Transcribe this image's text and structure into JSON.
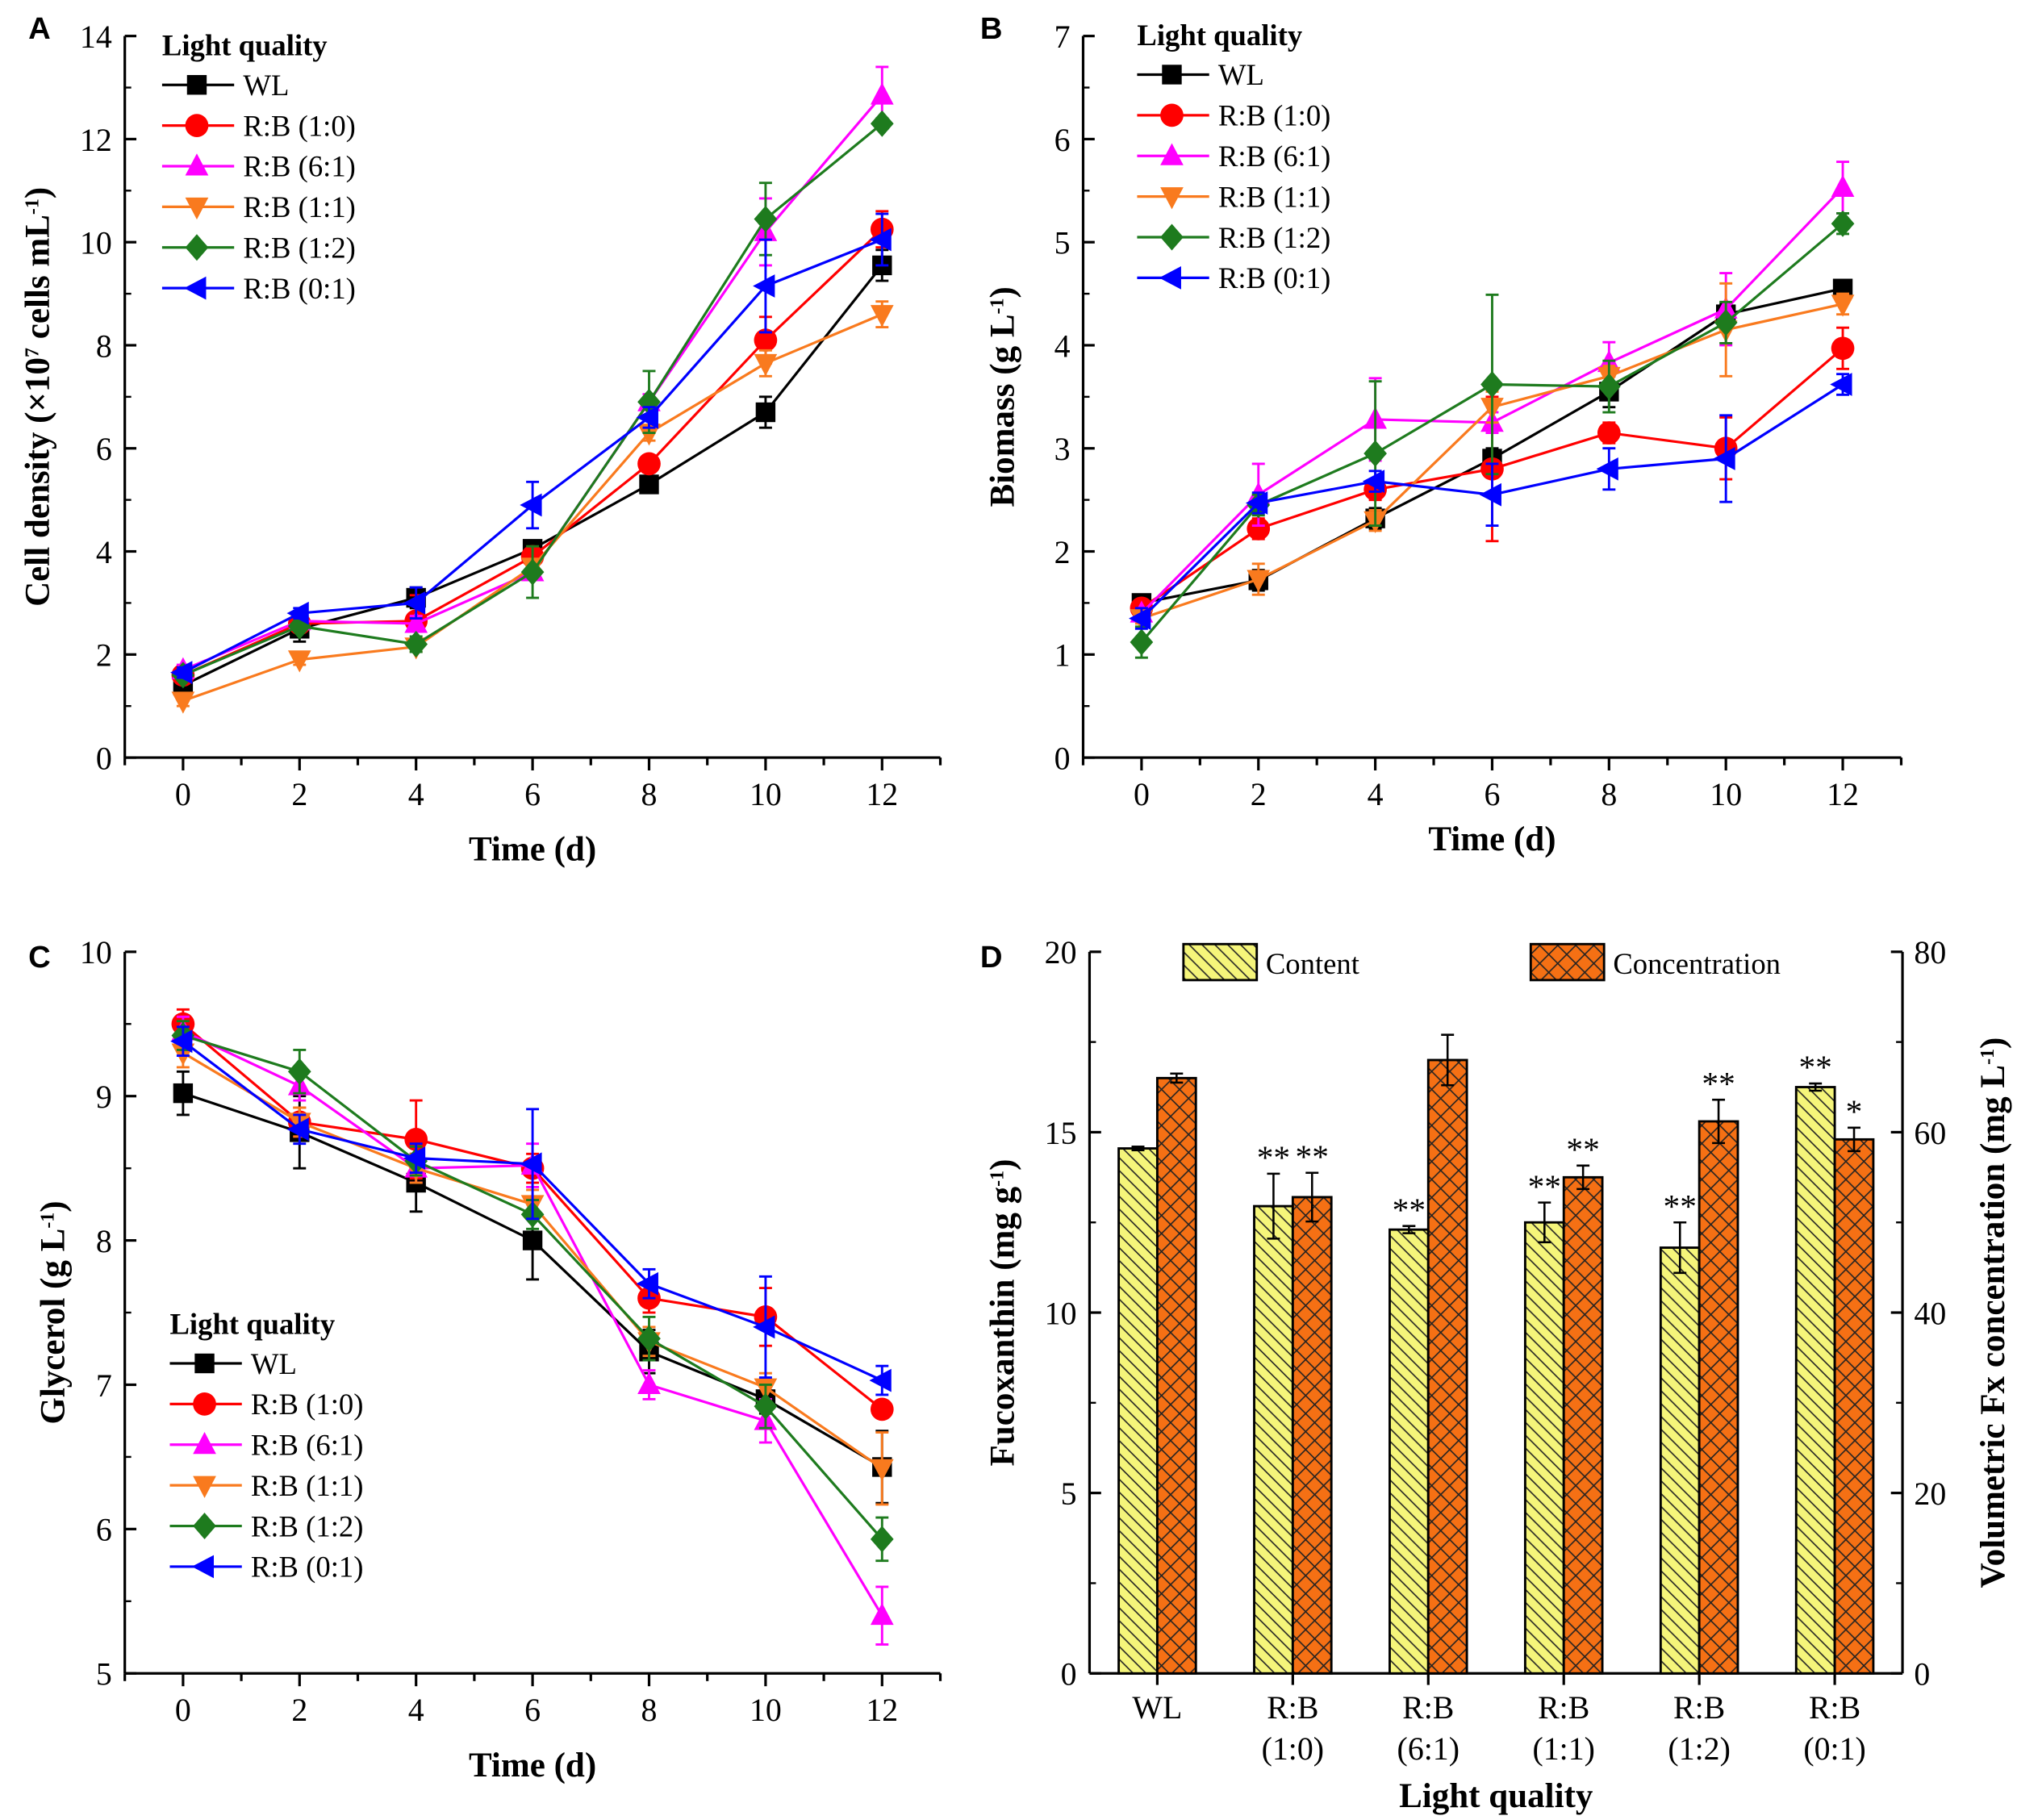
{
  "colors": {
    "WL": "#000000",
    "R:B (1:0)": "#ff0000",
    "R:B (6:1)": "#ff00ff",
    "R:B (1:1)": "#f97a1e",
    "R:B (1:2)": "#1e7b1e",
    "R:B (0:1)": "#0000ff",
    "content": "#f5f57a",
    "concentration": "#f57014"
  },
  "chart_data": [
    {
      "panel": "A",
      "type": "line",
      "legend_title": "Light quality",
      "legend_position": "top-left",
      "xlabel": "Time (d)",
      "ylabel_parts": [
        "Cell density (×10",
        "7",
        " cells mL",
        "-1",
        ")"
      ],
      "xlim": [
        -1,
        13
      ],
      "ylim": [
        0,
        14
      ],
      "xticks": [
        0,
        2,
        4,
        6,
        8,
        10,
        12
      ],
      "yticks": [
        0,
        2,
        4,
        6,
        8,
        10,
        12,
        14
      ],
      "x": [
        0,
        2,
        4,
        6,
        8,
        10,
        12
      ],
      "series": [
        {
          "name": "WL",
          "marker": "square",
          "values": [
            1.4,
            2.5,
            3.1,
            4.05,
            5.3,
            6.7,
            9.55
          ],
          "errors": [
            0.1,
            0.25,
            0.2,
            0.1,
            0.1,
            0.3,
            0.3
          ]
        },
        {
          "name": "R:B (1:0)",
          "marker": "circle",
          "values": [
            1.6,
            2.6,
            2.65,
            3.9,
            5.7,
            8.1,
            10.25
          ],
          "errors": [
            0.1,
            0.1,
            0.5,
            0.1,
            0.1,
            0.45,
            0.35
          ]
        },
        {
          "name": "R:B (6:1)",
          "marker": "triangle-up",
          "values": [
            1.7,
            2.65,
            2.6,
            3.6,
            6.9,
            10.2,
            12.85
          ],
          "errors": [
            0.1,
            0.15,
            0.15,
            0.15,
            0.15,
            0.65,
            0.55
          ]
        },
        {
          "name": "R:B (1:1)",
          "marker": "triangle-down",
          "values": [
            1.1,
            1.9,
            2.15,
            3.7,
            6.3,
            7.65,
            8.6
          ],
          "errors": [
            0.1,
            0.1,
            0.1,
            0.1,
            0.15,
            0.25,
            0.25
          ]
        },
        {
          "name": "R:B (1:2)",
          "marker": "diamond",
          "values": [
            1.6,
            2.55,
            2.2,
            3.6,
            6.9,
            10.45,
            12.3
          ],
          "errors": [
            0.1,
            0.1,
            0.15,
            0.5,
            0.6,
            0.7,
            0.1
          ]
        },
        {
          "name": "R:B (0:1)",
          "marker": "triangle-left",
          "values": [
            1.65,
            2.8,
            3.0,
            4.9,
            6.6,
            9.15,
            10.05
          ],
          "errors": [
            0.1,
            0.1,
            0.3,
            0.45,
            0.2,
            0.9,
            0.5
          ]
        }
      ]
    },
    {
      "panel": "B",
      "type": "line",
      "legend_title": "Light quality",
      "legend_position": "top-left",
      "xlabel": "Time (d)",
      "ylabel_parts": [
        "Biomass (g L",
        "-1",
        ")"
      ],
      "xlim": [
        -1,
        13
      ],
      "ylim": [
        0,
        7
      ],
      "xticks": [
        0,
        2,
        4,
        6,
        8,
        10,
        12
      ],
      "yticks": [
        0,
        1,
        2,
        3,
        4,
        5,
        6,
        7
      ],
      "x": [
        0,
        2,
        4,
        6,
        8,
        10,
        12
      ],
      "series": [
        {
          "name": "WL",
          "marker": "square",
          "values": [
            1.5,
            1.72,
            2.32,
            2.9,
            3.55,
            4.3,
            4.55
          ],
          "errors": [
            0.05,
            0.1,
            0.1,
            0.1,
            0.15,
            0.1,
            0.05
          ]
        },
        {
          "name": "R:B (1:0)",
          "marker": "circle",
          "values": [
            1.45,
            2.22,
            2.6,
            2.8,
            3.15,
            3.0,
            3.97
          ],
          "errors": [
            0.05,
            0.1,
            0.1,
            0.7,
            0.1,
            0.3,
            0.2
          ]
        },
        {
          "name": "R:B (6:1)",
          "marker": "triangle-up",
          "values": [
            1.4,
            2.55,
            3.28,
            3.25,
            3.83,
            4.35,
            5.53
          ],
          "errors": [
            0.05,
            0.3,
            0.4,
            0.1,
            0.2,
            0.35,
            0.25
          ]
        },
        {
          "name": "R:B (1:1)",
          "marker": "triangle-down",
          "values": [
            1.35,
            1.73,
            2.3,
            3.4,
            3.7,
            4.15,
            4.4
          ],
          "errors": [
            0.05,
            0.15,
            0.1,
            0.15,
            0.1,
            0.45,
            0.1
          ]
        },
        {
          "name": "R:B (1:2)",
          "marker": "diamond",
          "values": [
            1.12,
            2.45,
            2.95,
            3.62,
            3.6,
            4.22,
            5.18
          ],
          "errors": [
            0.15,
            0.1,
            0.7,
            0.87,
            0.25,
            0.2,
            0.1
          ]
        },
        {
          "name": "R:B (0:1)",
          "marker": "triangle-left",
          "values": [
            1.35,
            2.47,
            2.68,
            2.55,
            2.8,
            2.9,
            3.62
          ],
          "errors": [
            0.1,
            0.1,
            0.1,
            0.3,
            0.2,
            0.42,
            0.1
          ]
        }
      ]
    },
    {
      "panel": "C",
      "type": "line",
      "legend_title": "Light quality",
      "legend_position": "bottom-left",
      "xlabel": "Time (d)",
      "ylabel_parts": [
        "Glycerol (g L",
        "-1",
        ")"
      ],
      "xlim": [
        -1,
        13
      ],
      "ylim": [
        5,
        10
      ],
      "xticks": [
        0,
        2,
        4,
        6,
        8,
        10,
        12
      ],
      "yticks": [
        5,
        6,
        7,
        8,
        9,
        10
      ],
      "x": [
        0,
        2,
        4,
        6,
        8,
        10,
        12
      ],
      "series": [
        {
          "name": "WL",
          "marker": "square",
          "values": [
            9.02,
            8.75,
            8.4,
            8.0,
            7.23,
            6.9,
            6.43
          ],
          "errors": [
            0.15,
            0.25,
            0.2,
            0.27,
            0.15,
            0.1,
            0.25
          ]
        },
        {
          "name": "R:B (1:0)",
          "marker": "circle",
          "values": [
            9.5,
            8.82,
            8.7,
            8.5,
            7.6,
            7.47,
            6.83
          ],
          "errors": [
            0.1,
            0.1,
            0.27,
            0.1,
            0.1,
            0.2,
            0.05
          ]
        },
        {
          "name": "R:B (6:1)",
          "marker": "triangle-up",
          "values": [
            9.45,
            9.07,
            8.5,
            8.52,
            7.0,
            6.75,
            5.4
          ],
          "errors": [
            0.1,
            0.1,
            0.1,
            0.15,
            0.1,
            0.15,
            0.2
          ]
        },
        {
          "name": "R:B (1:1)",
          "marker": "triangle-down",
          "values": [
            9.3,
            8.82,
            8.5,
            8.25,
            7.3,
            6.98,
            6.42
          ],
          "errors": [
            0.1,
            0.1,
            0.1,
            0.1,
            0.1,
            0.1,
            0.25
          ]
        },
        {
          "name": "R:B (1:2)",
          "marker": "diamond",
          "values": [
            9.42,
            9.17,
            8.55,
            8.18,
            7.32,
            6.85,
            5.93
          ],
          "errors": [
            0.1,
            0.15,
            0.1,
            0.1,
            0.15,
            0.15,
            0.15
          ]
        },
        {
          "name": "R:B (0:1)",
          "marker": "triangle-left",
          "values": [
            9.38,
            8.77,
            8.57,
            8.53,
            7.7,
            7.4,
            7.03
          ],
          "errors": [
            0.1,
            0.1,
            0.1,
            0.38,
            0.1,
            0.35,
            0.1
          ]
        }
      ]
    },
    {
      "panel": "D",
      "type": "bar",
      "legend_position": "top",
      "xlabel": "Light quality",
      "ylabel_parts": [
        "Fucoxanthin (mg g",
        "-1",
        ")"
      ],
      "y2label_parts": [
        "Volumetric Fx concentration (mg L",
        "-1",
        ")"
      ],
      "ylim": [
        0,
        20
      ],
      "y2lim": [
        0,
        80
      ],
      "yticks": [
        0,
        5,
        10,
        15,
        20
      ],
      "y2ticks": [
        0,
        20,
        40,
        60,
        80
      ],
      "categories": [
        [
          "WL",
          ""
        ],
        [
          "R:B",
          "(1:0)"
        ],
        [
          "R:B",
          "(6:1)"
        ],
        [
          "R:B",
          "(1:1)"
        ],
        [
          "R:B",
          "(1:2)"
        ],
        [
          "R:B",
          "(0:1)"
        ]
      ],
      "series": [
        {
          "name": "Content",
          "axis": "left",
          "values": [
            14.55,
            12.95,
            12.3,
            12.5,
            11.8,
            16.25
          ],
          "errors": [
            0.05,
            0.9,
            0.1,
            0.55,
            0.7,
            0.1
          ],
          "significance": [
            "",
            "**",
            "**",
            "**",
            "**",
            "**"
          ]
        },
        {
          "name": "Concentration",
          "axis": "right",
          "values": [
            66,
            52.8,
            68,
            55,
            61.2,
            59.2
          ],
          "errors": [
            0.5,
            2.7,
            2.8,
            1.3,
            2.4,
            1.3
          ],
          "significance": [
            "",
            "**",
            "",
            "**",
            "**",
            "*"
          ]
        }
      ]
    }
  ]
}
